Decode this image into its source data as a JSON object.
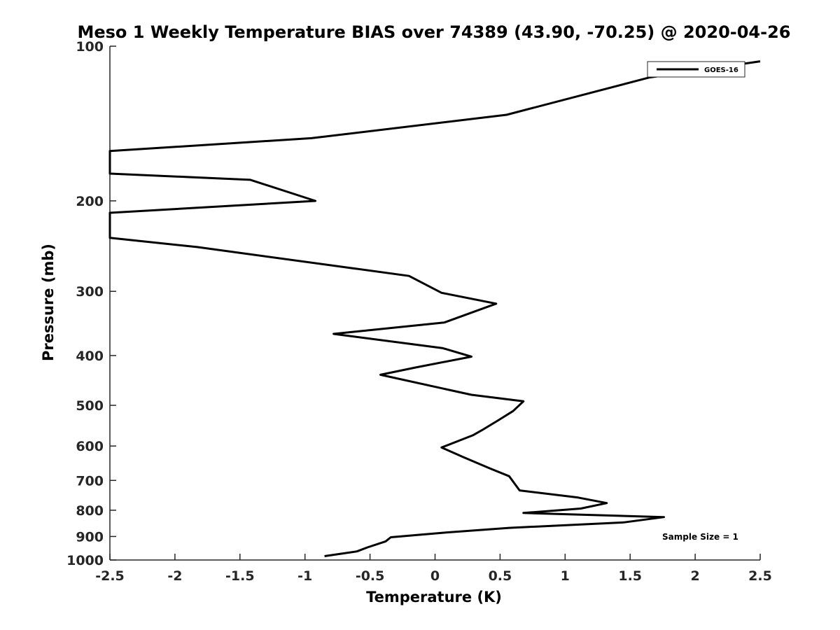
{
  "chart_data": {
    "type": "line",
    "title": "Meso 1 Weekly Temperature BIAS over 74389 (43.90, -70.25) @ 2020-04-26",
    "xlabel": "Temperature (K)",
    "ylabel": "Pressure (mb)",
    "xlim": [
      -2.5,
      2.5
    ],
    "ylim": [
      100,
      1000
    ],
    "y_scale": "log",
    "y_reversed": true,
    "x_ticks": [
      -2.5,
      -2,
      -1.5,
      -1,
      -0.5,
      0,
      0.5,
      1,
      1.5,
      2,
      2.5
    ],
    "x_tick_labels": [
      "-2.5",
      "-2",
      "-1.5",
      "-1",
      "-0.5",
      "0",
      "0.5",
      "1",
      "1.5",
      "2",
      "2.5"
    ],
    "y_ticks": [
      100,
      200,
      300,
      400,
      500,
      600,
      700,
      800,
      900,
      1000
    ],
    "y_tick_labels": [
      "100",
      "200",
      "300",
      "400",
      "500",
      "600",
      "700",
      "800",
      "900",
      "1000"
    ],
    "grid": false,
    "legend_position": "top-right",
    "annotation": "Sample Size = 1",
    "series": [
      {
        "name": "GOES-16",
        "color": "#000000",
        "points": [
          [
            2.5,
            107
          ],
          [
            1.65,
            115
          ],
          [
            0.55,
            136
          ],
          [
            -0.95,
            151
          ],
          [
            -2.5,
            160
          ],
          [
            -2.5,
            177
          ],
          [
            -1.42,
            182
          ],
          [
            -0.92,
            200
          ],
          [
            -2.5,
            211
          ],
          [
            -2.5,
            236
          ],
          [
            -1.83,
            246
          ],
          [
            -0.2,
            280
          ],
          [
            0.05,
            302
          ],
          [
            0.47,
            317
          ],
          [
            0.07,
            345
          ],
          [
            -0.78,
            363
          ],
          [
            0.06,
            387
          ],
          [
            0.28,
            402
          ],
          [
            -0.15,
            422
          ],
          [
            -0.42,
            436
          ],
          [
            0.28,
            477
          ],
          [
            0.68,
            491
          ],
          [
            0.6,
            513
          ],
          [
            0.49,
            534
          ],
          [
            0.36,
            559
          ],
          [
            0.29,
            572
          ],
          [
            0.05,
            604
          ],
          [
            0.22,
            631
          ],
          [
            0.42,
            663
          ],
          [
            0.57,
            687
          ],
          [
            0.65,
            732
          ],
          [
            1.1,
            756
          ],
          [
            1.32,
            775
          ],
          [
            1.12,
            794
          ],
          [
            0.68,
            810
          ],
          [
            1.76,
            825
          ],
          [
            1.45,
            845
          ],
          [
            0.57,
            866
          ],
          [
            0.06,
            885
          ],
          [
            -0.34,
            903
          ],
          [
            -0.38,
            920
          ],
          [
            -0.52,
            945
          ],
          [
            -0.6,
            962
          ],
          [
            -0.85,
            983
          ]
        ]
      }
    ]
  }
}
